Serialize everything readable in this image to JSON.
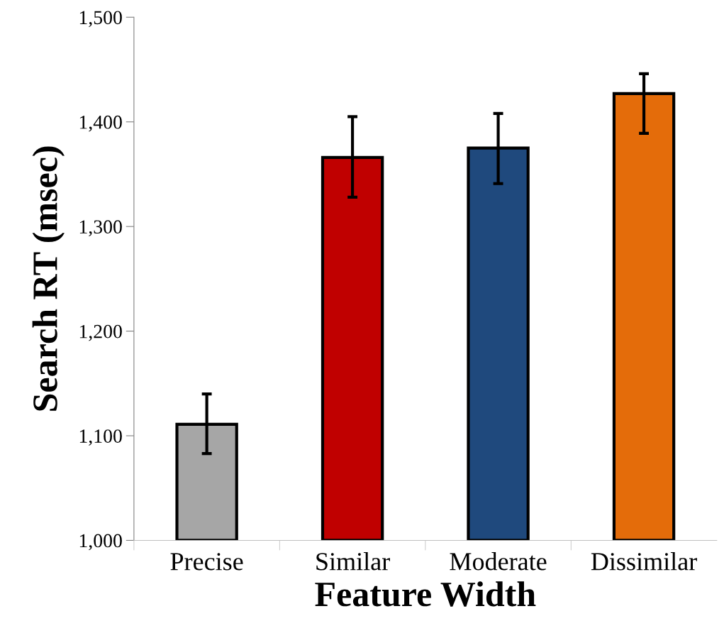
{
  "chart_data": {
    "type": "bar",
    "xlabel": "Feature Width",
    "ylabel": "Search RT (msec)",
    "categories": [
      "Precise",
      "Similar",
      "Moderate",
      "Dissimilar"
    ],
    "values": [
      1111,
      1366,
      1375,
      1427
    ],
    "colors": [
      "#a6a6a6",
      "#c00000",
      "#1f497d",
      "#e46c0a"
    ],
    "errors": [
      [
        1083,
        1140
      ],
      [
        1328,
        1405
      ],
      [
        1341,
        1408
      ],
      [
        1389,
        1446
      ]
    ],
    "ylim": [
      1000,
      1500
    ],
    "yticks": [
      {
        "value": 1000,
        "label": "1,000"
      },
      {
        "value": 1100,
        "label": "1,100"
      },
      {
        "value": 1200,
        "label": "1,200"
      },
      {
        "value": 1300,
        "label": "1,300"
      },
      {
        "value": 1400,
        "label": "1,400"
      },
      {
        "value": 1500,
        "label": "1,500"
      }
    ],
    "grid": false,
    "legend": false
  }
}
